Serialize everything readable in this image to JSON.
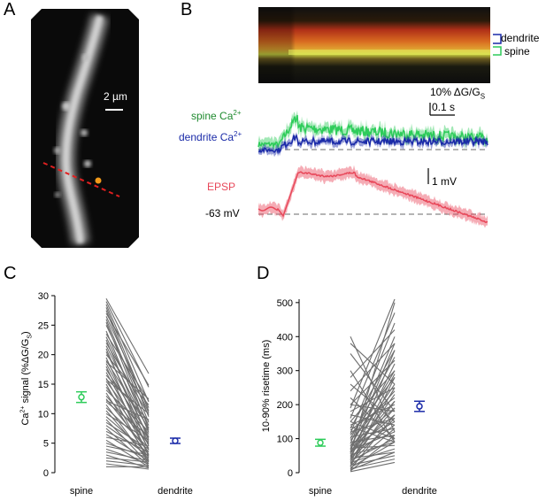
{
  "panels": {
    "a": {
      "letter": "A",
      "scalebar_label": "2 µm",
      "colors": {
        "line": "#e02020",
        "dot": "#f29a1a"
      }
    },
    "b": {
      "letter": "B",
      "linescan_labels": {
        "dendrite": "dendrite",
        "spine": "spine"
      },
      "scale": {
        "dg": "10% ΔG/G",
        "dg_sub": "S",
        "time": "0.1 s",
        "mv": "1 mV"
      },
      "traces": {
        "spine_label": "spine Ca",
        "spine_sup": "2+",
        "dendrite_label": "dendrite Ca",
        "dendrite_sup": "2+",
        "epsp_label": "EPSP",
        "baseline_label": "-63 mV"
      },
      "colors": {
        "spine": "#2ecc5a",
        "dendrite": "#1a2aa8",
        "epsp": "#e8485a"
      }
    }
  },
  "chart_data": [
    {
      "panel": "C",
      "type": "scatter",
      "ylabel": "Ca",
      "ylabel_sup": "2+",
      "ylabel_rest": " signal (%ΔG/G",
      "ylabel_sub": "S",
      "ylabel_end": ")",
      "categories": [
        "spine",
        "dendrite"
      ],
      "ylim": [
        0,
        30
      ],
      "yticks": [
        0,
        5,
        10,
        15,
        20,
        25,
        30
      ],
      "summary": [
        {
          "category": "spine",
          "mean": 12.8,
          "err": 0.9,
          "color": "#2ecc5a"
        },
        {
          "category": "dendrite",
          "mean": 5.4,
          "err": 0.45,
          "color": "#1a2aa8"
        }
      ],
      "pairs": [
        [
          29.5,
          16.8
        ],
        [
          29.0,
          14.5
        ],
        [
          28.5,
          12.0
        ],
        [
          28.0,
          10.5
        ],
        [
          27.5,
          9.5
        ],
        [
          27.0,
          14.8
        ],
        [
          26.5,
          11.0
        ],
        [
          26.0,
          8.5
        ],
        [
          25.5,
          7.5
        ],
        [
          25.0,
          10.2
        ],
        [
          24.0,
          6.8
        ],
        [
          23.5,
          12.2
        ],
        [
          23.0,
          8.0
        ],
        [
          22.5,
          5.5
        ],
        [
          22.0,
          9.8
        ],
        [
          21.5,
          7.2
        ],
        [
          21.0,
          4.5
        ],
        [
          20.5,
          6.0
        ],
        [
          20.0,
          11.5
        ],
        [
          19.5,
          3.8
        ],
        [
          19.0,
          7.5
        ],
        [
          18.5,
          5.2
        ],
        [
          18.0,
          2.8
        ],
        [
          17.5,
          6.5
        ],
        [
          17.0,
          4.0
        ],
        [
          16.5,
          8.8
        ],
        [
          16.0,
          3.0
        ],
        [
          15.5,
          5.8
        ],
        [
          15.0,
          2.0
        ],
        [
          14.5,
          4.8
        ],
        [
          14.0,
          7.0
        ],
        [
          13.5,
          2.5
        ],
        [
          13.0,
          5.0
        ],
        [
          12.5,
          3.5
        ],
        [
          12.0,
          6.2
        ],
        [
          11.5,
          1.8
        ],
        [
          11.0,
          4.2
        ],
        [
          10.5,
          2.2
        ],
        [
          10.0,
          5.5
        ],
        [
          9.5,
          3.2
        ],
        [
          9.0,
          1.5
        ],
        [
          8.5,
          4.0
        ],
        [
          8.0,
          2.8
        ],
        [
          7.5,
          1.2
        ],
        [
          7.0,
          3.5
        ],
        [
          6.5,
          2.0
        ],
        [
          6.0,
          4.5
        ],
        [
          5.5,
          1.0
        ],
        [
          5.0,
          2.5
        ],
        [
          4.5,
          3.0
        ],
        [
          4.0,
          1.5
        ],
        [
          3.5,
          2.0
        ],
        [
          3.0,
          0.8
        ],
        [
          2.5,
          1.8
        ],
        [
          2.0,
          1.2
        ],
        [
          1.5,
          0.6
        ],
        [
          1.0,
          1.0
        ],
        [
          12.2,
          9.0
        ],
        [
          15.8,
          10.0
        ],
        [
          18.8,
          12.5
        ]
      ]
    },
    {
      "panel": "D",
      "type": "scatter",
      "ylabel": "10-90% risetime (ms)",
      "categories": [
        "spine",
        "dendrite"
      ],
      "ylim": [
        0,
        510
      ],
      "yticks": [
        0,
        100,
        200,
        300,
        400,
        500
      ],
      "summary": [
        {
          "category": "spine",
          "mean": 88,
          "err": 10,
          "color": "#2ecc5a"
        },
        {
          "category": "dendrite",
          "mean": 195,
          "err": 15,
          "color": "#1a2aa8"
        }
      ],
      "pairs": [
        [
          400,
          120
        ],
        [
          380,
          260
        ],
        [
          350,
          180
        ],
        [
          300,
          90
        ],
        [
          280,
          420
        ],
        [
          260,
          150
        ],
        [
          240,
          380
        ],
        [
          220,
          100
        ],
        [
          200,
          330
        ],
        [
          190,
          510
        ],
        [
          180,
          250
        ],
        [
          170,
          140
        ],
        [
          160,
          470
        ],
        [
          150,
          300
        ],
        [
          140,
          200
        ],
        [
          135,
          90
        ],
        [
          130,
          360
        ],
        [
          125,
          220
        ],
        [
          120,
          160
        ],
        [
          115,
          440
        ],
        [
          110,
          280
        ],
        [
          105,
          130
        ],
        [
          100,
          340
        ],
        [
          95,
          240
        ],
        [
          90,
          110
        ],
        [
          85,
          400
        ],
        [
          80,
          190
        ],
        [
          78,
          300
        ],
        [
          75,
          150
        ],
        [
          72,
          80
        ],
        [
          70,
          260
        ],
        [
          68,
          380
        ],
        [
          65,
          120
        ],
        [
          62,
          210
        ],
        [
          60,
          500
        ],
        [
          58,
          170
        ],
        [
          55,
          320
        ],
        [
          52,
          90
        ],
        [
          50,
          230
        ],
        [
          48,
          140
        ],
        [
          45,
          290
        ],
        [
          42,
          60
        ],
        [
          40,
          190
        ],
        [
          38,
          360
        ],
        [
          35,
          100
        ],
        [
          32,
          250
        ],
        [
          30,
          70
        ],
        [
          28,
          160
        ],
        [
          25,
          210
        ],
        [
          22,
          50
        ],
        [
          20,
          130
        ],
        [
          18,
          280
        ],
        [
          15,
          90
        ],
        [
          12,
          40
        ],
        [
          10,
          170
        ],
        [
          8,
          60
        ],
        [
          5,
          110
        ],
        [
          3,
          30
        ],
        [
          150,
          100
        ],
        [
          200,
          180
        ]
      ]
    }
  ]
}
